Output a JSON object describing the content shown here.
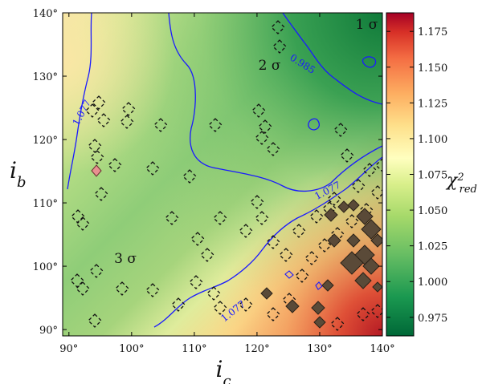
{
  "chart_data": {
    "type": "heatmap",
    "title": "",
    "xlabel": "i_c",
    "ylabel": "i_b",
    "xlim": [
      89,
      140
    ],
    "ylim": [
      89,
      140
    ],
    "x_ticks": [
      "90°",
      "100°",
      "110°",
      "120°",
      "130°",
      "140°"
    ],
    "y_ticks": [
      "90°",
      "100°",
      "110°",
      "120°",
      "130°",
      "140°"
    ],
    "colorbar": {
      "label": "χ²_red",
      "range": [
        0.962,
        1.188
      ],
      "colormap": "RdYlGn_r",
      "ticks": [
        "0.975",
        "1.000",
        "1.025",
        "1.050",
        "1.075",
        "1.100",
        "1.125",
        "1.150",
        "1.175"
      ]
    },
    "regions": [
      {
        "label": "1 σ",
        "x": 137.5,
        "y": 137.5
      },
      {
        "label": "2 σ",
        "x": 122,
        "y": 131
      },
      {
        "label": "3 σ",
        "x": 99,
        "y": 100.5
      }
    ],
    "contours": [
      {
        "label": "0.985",
        "level": 0.985,
        "label_x": 127,
        "label_y": 131.5
      },
      {
        "label": "1.077",
        "level": 1.077,
        "label_x": 92.5,
        "label_y": 124
      },
      {
        "label": "1.077",
        "level": 1.077,
        "label_x": 116.5,
        "label_y": 92.5
      },
      {
        "label": "1.077",
        "level": 1.077,
        "label_x": 131.5,
        "label_y": 111.5
      }
    ],
    "colors": {
      "contour": "#1a1aff",
      "marker_outline": "#111111",
      "filled_marker": "#5a4a38",
      "highlight_marker": "#e89090"
    }
  }
}
